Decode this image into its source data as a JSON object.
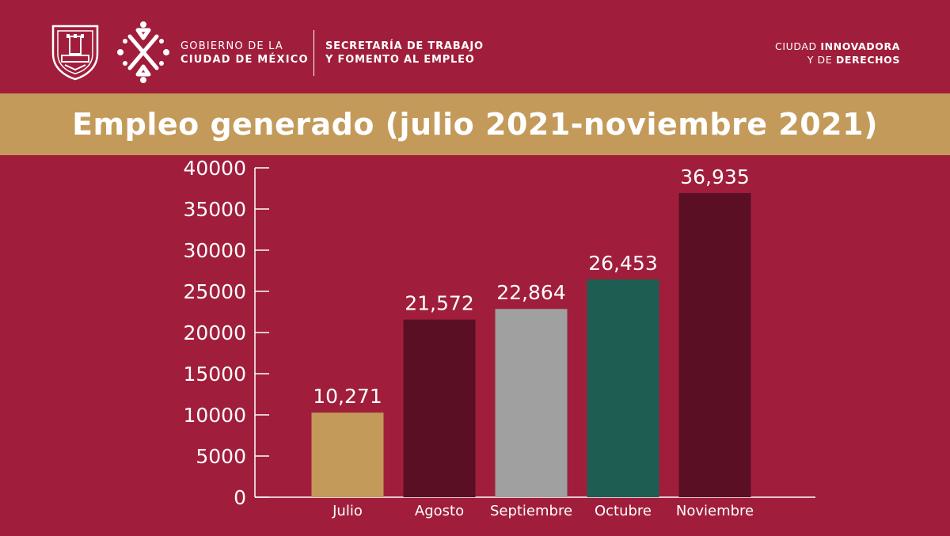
{
  "header": {
    "gov_line1": "GOBIERNO DE LA",
    "gov_line2": "CIUDAD DE MÉXICO",
    "stps_line1": "SECRETARÍA DE TRABAJO",
    "stps_line2": "Y FOMENTO AL EMPLEO",
    "slogan_line1_a": "CIUDAD ",
    "slogan_line1_b": "INNOVADORA",
    "slogan_line2_a": "Y DE ",
    "slogan_line2_b": "DERECHOS",
    "shield_icon": "cdmx-shield-icon",
    "emblem_icon": "cdmx-emblem-icon"
  },
  "colors": {
    "background": "#a01e3c",
    "band": "#c39a5a",
    "text": "#ffffff"
  },
  "chart_data": {
    "type": "bar",
    "title": "Empleo generado (julio 2021-noviembre 2021)",
    "categories": [
      "Julio",
      "Agosto",
      "Septiembre",
      "Octubre",
      "Noviembre"
    ],
    "values": [
      10271,
      21572,
      22864,
      26453,
      36935
    ],
    "value_labels": [
      "10,271",
      "21,572",
      "22,864",
      "26,453",
      "36,935"
    ],
    "bar_colors": [
      "#c39a5a",
      "#5a0f24",
      "#a0a0a0",
      "#1e5e52",
      "#5a0f24"
    ],
    "yticks": [
      0,
      5000,
      10000,
      15000,
      20000,
      25000,
      30000,
      35000,
      40000
    ],
    "ylim": [
      0,
      40000
    ],
    "xlabel": "",
    "ylabel": "",
    "grid": false,
    "legend": "none"
  }
}
